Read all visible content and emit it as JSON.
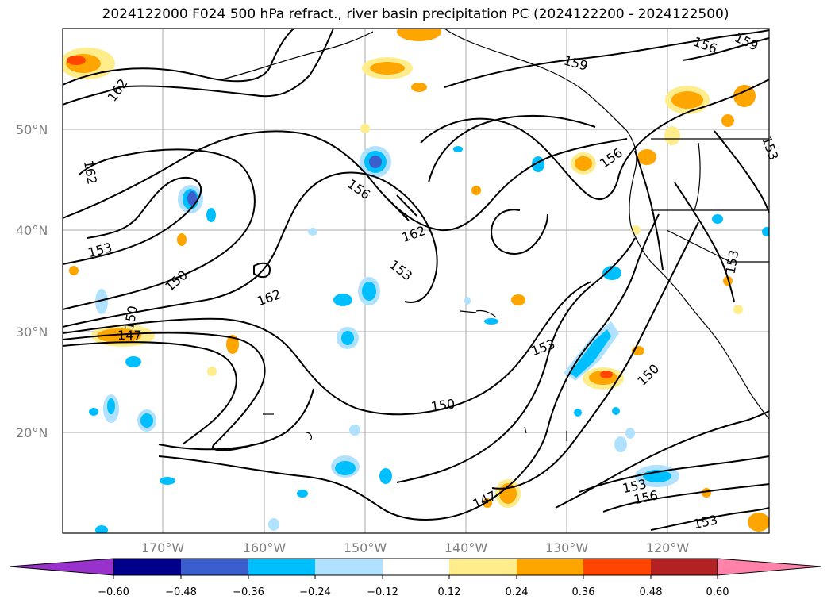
{
  "title": "2024122000 F024 500 hPa refract., river basin precipitation PC (2024122200 - 2024122500)",
  "lat_labels": [
    "50°N",
    "40°N",
    "30°N",
    "20°N"
  ],
  "lon_labels": [
    "170°W",
    "160°W",
    "150°W",
    "140°W",
    "130°W",
    "120°W"
  ],
  "contour_labels": [
    "162",
    "156",
    "159",
    "156",
    "159",
    "153",
    "156",
    "162",
    "153",
    "153",
    "150",
    "162",
    "153",
    "150",
    "147",
    "150",
    "153",
    "156",
    "150",
    "147",
    "153",
    "153",
    "162",
    "150"
  ],
  "colorbar": {
    "tick_labels": [
      "−0.60",
      "−0.48",
      "−0.36",
      "−0.24",
      "−0.12",
      "0.12",
      "0.24",
      "0.36",
      "0.48",
      "0.60"
    ],
    "colors": [
      "#9932cc",
      "#00008b",
      "#3a5fcd",
      "#00bfff",
      "#b0e2ff",
      "#ffffff",
      "#ffec8b",
      "#ffa500",
      "#ff4500",
      "#b22222",
      "#ff82ab"
    ]
  },
  "colors": {
    "contour": "#000000",
    "coast": "#000000",
    "grid": "#a9a9a9"
  }
}
